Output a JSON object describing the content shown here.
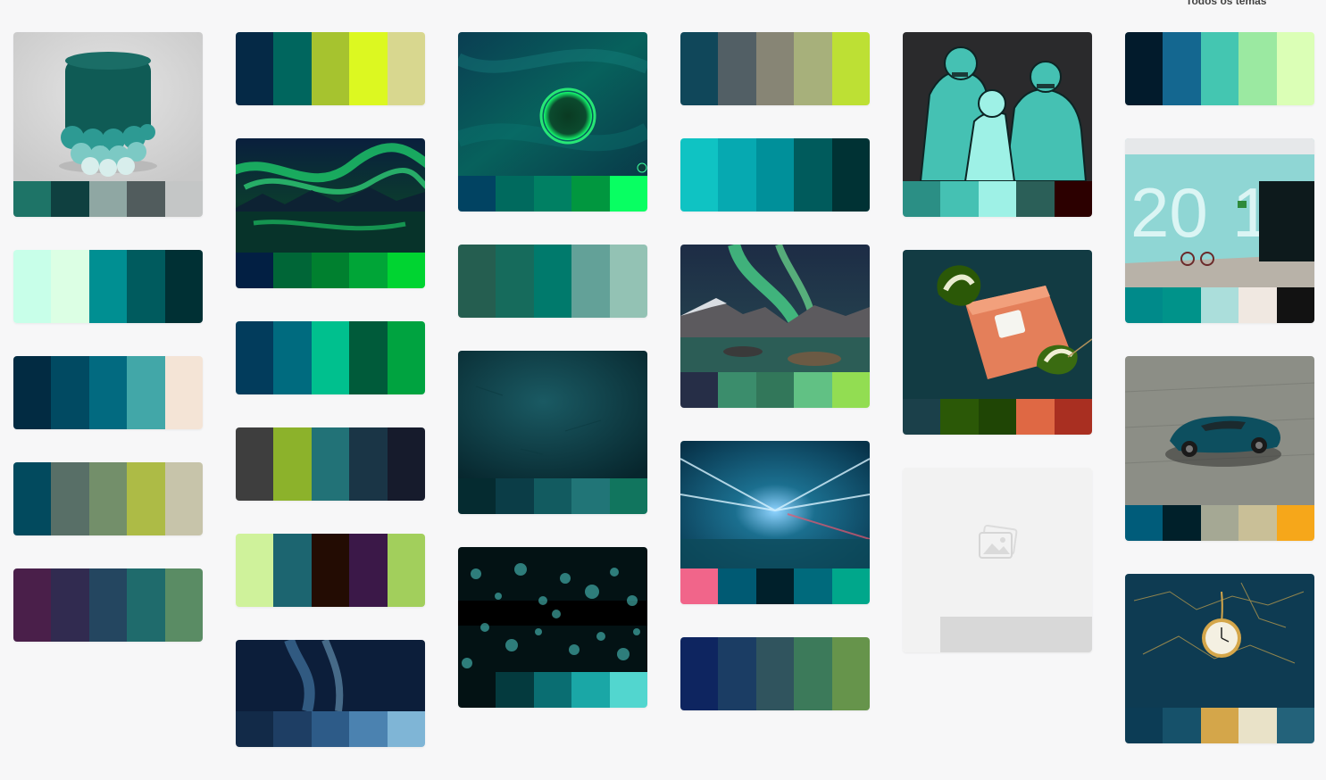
{
  "header": {
    "link_label": "Todos os temas"
  },
  "columns": [
    {
      "name": "col-1",
      "cards": [
        {
          "kind": "photo",
          "image": "dark-teal-stool",
          "colors": [
            "#1e7467",
            "#0f4040",
            "#8fa7a3",
            "#515c5d",
            "#c4c6c6"
          ]
        },
        {
          "kind": "swatch",
          "colors": [
            "#c8ffe9",
            "#dcffe4",
            "#008f92",
            "#005b5e",
            "#003034"
          ]
        },
        {
          "kind": "swatch",
          "colors": [
            "#022b42",
            "#014a62",
            "#026a80",
            "#42a7a8",
            "#f4e4d6"
          ]
        },
        {
          "kind": "swatch",
          "colors": [
            "#024a5e",
            "#586f67",
            "#738f6a",
            "#adbb46",
            "#c7c4aa"
          ]
        },
        {
          "kind": "swatch",
          "colors": [
            "#4a1f4a",
            "#312b50",
            "#244660",
            "#1f6b6c",
            "#5a8c64"
          ]
        }
      ]
    },
    {
      "name": "col-2",
      "cards": [
        {
          "kind": "swatch",
          "colors": [
            "#052946",
            "#00665e",
            "#a6c32f",
            "#dcf821",
            "#d8d78f"
          ]
        },
        {
          "kind": "photo",
          "image": "green-aurora-lake",
          "colors": [
            "#021f43",
            "#006637",
            "#00802f",
            "#00a537",
            "#00d431"
          ]
        },
        {
          "kind": "swatch",
          "colors": [
            "#023c5c",
            "#006b7f",
            "#00c08e",
            "#005b3a",
            "#00a340"
          ]
        },
        {
          "kind": "swatch",
          "colors": [
            "#3e3e3e",
            "#8cb22b",
            "#227277",
            "#1a3546",
            "#161b2c"
          ]
        },
        {
          "kind": "swatch",
          "colors": [
            "#cff29b",
            "#1c6570",
            "#230c03",
            "#3b1848",
            "#a2cf5c"
          ]
        },
        {
          "kind": "photo",
          "image": "blue-aurora",
          "colors": [
            "#122a48",
            "#1e3e64",
            "#2d5b88",
            "#4b82b0",
            "#7fb5d6"
          ]
        }
      ]
    },
    {
      "name": "col-3",
      "cards": [
        {
          "kind": "photo",
          "image": "green-planet-ring",
          "colors": [
            "#014362",
            "#006a5e",
            "#008063",
            "#01973f",
            "#08ff62"
          ]
        },
        {
          "kind": "swatch",
          "colors": [
            "#255e50",
            "#166b5c",
            "#007a6c",
            "#63a198",
            "#93c2b4"
          ]
        },
        {
          "kind": "photo",
          "image": "dark-teal-texture",
          "colors": [
            "#052b30",
            "#0b3d47",
            "#125b60",
            "#217577",
            "#11755e"
          ]
        },
        {
          "kind": "photo",
          "image": "teal-bokeh",
          "colors": [
            "#031214",
            "#043a3e",
            "#0a6e72",
            "#1aa7a6",
            "#52d6cf"
          ]
        }
      ]
    },
    {
      "name": "col-4",
      "cards": [
        {
          "kind": "swatch",
          "colors": [
            "#10475a",
            "#525f65",
            "#878575",
            "#a7b07b",
            "#bde034"
          ]
        },
        {
          "kind": "swatch",
          "colors": [
            "#0fc3c3",
            "#06a9b1",
            "#00909a",
            "#005b5c",
            "#003234"
          ]
        },
        {
          "kind": "photo",
          "image": "aurora-fjord",
          "colors": [
            "#262e47",
            "#3b8d6c",
            "#32775a",
            "#61c184",
            "#92dd52"
          ]
        },
        {
          "kind": "photo",
          "image": "tunnel-light-trails",
          "colors": [
            "#f1658a",
            "#005a73",
            "#00202b",
            "#006a7c",
            "#00a78b"
          ]
        },
        {
          "kind": "swatch",
          "colors": [
            "#0e2560",
            "#1b3d64",
            "#30545e",
            "#3c7a5a",
            "#66944b"
          ]
        }
      ]
    },
    {
      "name": "col-5",
      "cards": [
        {
          "kind": "photo",
          "image": "comic-men-drinking",
          "colors": [
            "#2b8f85",
            "#45c1b3",
            "#9ef1e6",
            "#2b5f58",
            "#2c0000"
          ]
        },
        {
          "kind": "photo",
          "image": "himalayan-salt-block",
          "colors": [
            "#1b404a",
            "#2b5807",
            "#1f4505",
            "#df6844",
            "#a92f21"
          ]
        },
        {
          "kind": "placeholder",
          "image": "image-placeholder",
          "colors": [
            "#f2f2f2",
            "#d8d8d8",
            "#d8d8d8",
            "#d8d8d8",
            "#d8d8d8"
          ]
        }
      ]
    },
    {
      "name": "col-6",
      "cards": [
        {
          "kind": "swatch",
          "colors": [
            "#021b2c",
            "#146790",
            "#44c6b1",
            "#9be9a1",
            "#dbffb6"
          ]
        },
        {
          "kind": "photo",
          "image": "teal-wall-2014",
          "colors": [
            "#008a8a",
            "#00938a",
            "#abdedb",
            "#f0e8e1",
            "#121212"
          ]
        },
        {
          "kind": "photo",
          "image": "teal-convertible-car",
          "colors": [
            "#005c7a",
            "#00202a",
            "#a5a894",
            "#c9bf97",
            "#f6a71a"
          ]
        },
        {
          "kind": "photo",
          "image": "pocket-watch-map",
          "colors": [
            "#0c3c55",
            "#16516a",
            "#d4a64a",
            "#e9e2c8",
            "#23627a"
          ]
        }
      ]
    }
  ]
}
